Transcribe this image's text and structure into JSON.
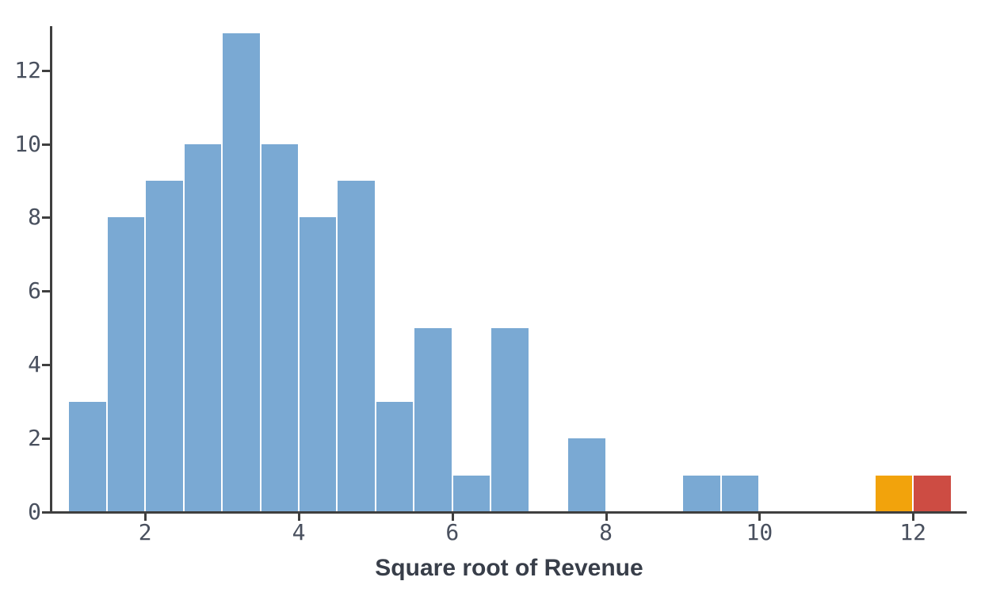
{
  "chart_data": {
    "type": "bar",
    "subtype": "histogram",
    "title": "",
    "xlabel": "Square root of Revenue",
    "ylabel": "",
    "bin_width": 0.5,
    "bins": [
      {
        "start": 1.0,
        "count": 3,
        "color": "#7aa9d3"
      },
      {
        "start": 1.5,
        "count": 8,
        "color": "#7aa9d3"
      },
      {
        "start": 2.0,
        "count": 9,
        "color": "#7aa9d3"
      },
      {
        "start": 2.5,
        "count": 10,
        "color": "#7aa9d3"
      },
      {
        "start": 3.0,
        "count": 13,
        "color": "#7aa9d3"
      },
      {
        "start": 3.5,
        "count": 10,
        "color": "#7aa9d3"
      },
      {
        "start": 4.0,
        "count": 8,
        "color": "#7aa9d3"
      },
      {
        "start": 4.5,
        "count": 9,
        "color": "#7aa9d3"
      },
      {
        "start": 5.0,
        "count": 3,
        "color": "#7aa9d3"
      },
      {
        "start": 5.5,
        "count": 5,
        "color": "#7aa9d3"
      },
      {
        "start": 6.0,
        "count": 1,
        "color": "#7aa9d3"
      },
      {
        "start": 6.5,
        "count": 5,
        "color": "#7aa9d3"
      },
      {
        "start": 7.5,
        "count": 2,
        "color": "#7aa9d3"
      },
      {
        "start": 9.0,
        "count": 1,
        "color": "#7aa9d3"
      },
      {
        "start": 9.5,
        "count": 1,
        "color": "#7aa9d3"
      },
      {
        "start": 11.5,
        "count": 1,
        "color": "#f2a30c"
      },
      {
        "start": 12.0,
        "count": 1,
        "color": "#cd4c43"
      }
    ],
    "xticks": [
      "2",
      "4",
      "6",
      "8",
      "10",
      "12"
    ],
    "xtick_values": [
      2,
      4,
      6,
      8,
      10,
      12
    ],
    "yticks": [
      "0",
      "2",
      "4",
      "6",
      "8",
      "10",
      "12"
    ],
    "ytick_values": [
      0,
      2,
      4,
      6,
      8,
      10,
      12
    ],
    "xlim": [
      0.78,
      12.7
    ],
    "ylim": [
      0,
      13.2
    ],
    "grid": false,
    "legend": false,
    "colors": {
      "bar_blue": "#7aa9d3",
      "bar_orange": "#f2a30c",
      "bar_red": "#cd4c43",
      "axis": "#3f3f3f",
      "tick_label": "#49505e",
      "axis_label": "#383e49",
      "bar_edge": "#ffffff",
      "background": "#ffffff"
    }
  }
}
